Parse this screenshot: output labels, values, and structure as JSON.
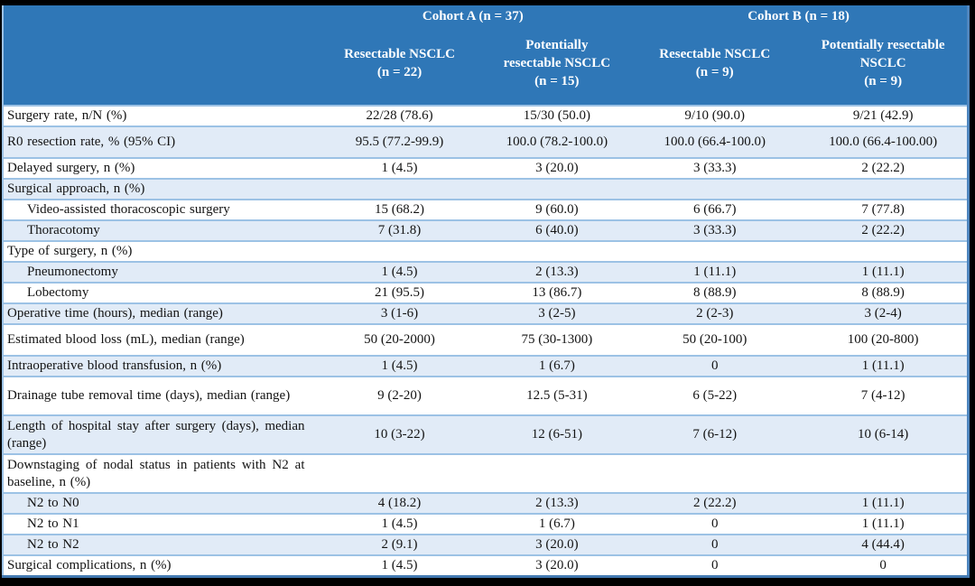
{
  "colors": {
    "header_bg": "#2F77B7",
    "header_text": "#FFFFFF",
    "row_bg": "#FFFFFF",
    "row_alt_bg": "#E1EBF7",
    "row_border": "#9CC2E5",
    "outer_border": "#4379B1",
    "matte": "#000000",
    "body_text": "#131313"
  },
  "header": {
    "cohort_a": "Cohort A (n = 37)",
    "cohort_b": "Cohort B (n = 18)",
    "columns": [
      {
        "lines": [
          "Resectable NSCLC",
          "(n = 22)"
        ]
      },
      {
        "lines": [
          "Potentially",
          "resectable NSCLC",
          "(n = 15)"
        ]
      },
      {
        "lines": [
          "Resectable NSCLC",
          "(n = 9)"
        ]
      },
      {
        "lines": [
          "Potentially resectable",
          "NSCLC",
          "(n = 9)"
        ]
      }
    ]
  },
  "rows": [
    {
      "label": "Surgery rate, n/N (%)",
      "indent": false,
      "variant": "normal",
      "values": [
        "22/28 (78.6)",
        "15/30 (50.0)",
        "9/10 (90.0)",
        "9/21 (42.9)"
      ]
    },
    {
      "label": "R0 resection rate, % (95% CI)",
      "indent": false,
      "variant": "tall",
      "values": [
        "95.5 (77.2-99.9)",
        "100.0 (78.2-100.0)",
        "100.0 (66.4-100.0)",
        "100.0 (66.4-100.00)"
      ]
    },
    {
      "label": "Delayed surgery, n (%)",
      "indent": false,
      "variant": "normal",
      "values": [
        "1 (4.5)",
        "3 (20.0)",
        "3 (33.3)",
        "2 (22.2)"
      ]
    },
    {
      "label": "Surgical approach, n (%)",
      "indent": false,
      "variant": "normal",
      "values": [
        "",
        "",
        "",
        ""
      ]
    },
    {
      "label": "Video-assisted thoracoscopic surgery",
      "indent": true,
      "variant": "normal",
      "values": [
        "15 (68.2)",
        "9 (60.0)",
        "6 (66.7)",
        "7 (77.8)"
      ]
    },
    {
      "label": "Thoracotomy",
      "indent": true,
      "variant": "normal",
      "values": [
        "7 (31.8)",
        "6 (40.0)",
        "3 (33.3)",
        "2 (22.2)"
      ]
    },
    {
      "label": "Type of surgery, n (%)",
      "indent": false,
      "variant": "normal",
      "values": [
        "",
        "",
        "",
        ""
      ]
    },
    {
      "label": "Pneumonectomy",
      "indent": true,
      "variant": "normal",
      "values": [
        "1 (4.5)",
        "2 (13.3)",
        "1 (11.1)",
        "1 (11.1)"
      ]
    },
    {
      "label": "Lobectomy",
      "indent": true,
      "variant": "normal",
      "values": [
        "21 (95.5)",
        "13 (86.7)",
        "8 (88.9)",
        "8 (88.9)"
      ]
    },
    {
      "label": "Operative time (hours), median (range)",
      "indent": false,
      "variant": "normal",
      "values": [
        "3 (1-6)",
        "3 (2-5)",
        "2 (2-3)",
        "3 (2-4)"
      ]
    },
    {
      "label": "Estimated blood loss (mL), median (range)",
      "indent": false,
      "variant": "tall",
      "values": [
        "50 (20-2000)",
        "75 (30-1300)",
        "50 (20-100)",
        "100 (20-800)"
      ]
    },
    {
      "label": "Intraoperative blood transfusion, n (%)",
      "indent": false,
      "variant": "normal",
      "values": [
        "1 (4.5)",
        "1 (6.7)",
        "0",
        "1 (11.1)"
      ]
    },
    {
      "label": "Drainage tube removal time (days), median (range)",
      "indent": false,
      "variant": "twoline",
      "values": [
        "9 (2-20)",
        "12.5 (5-31)",
        "6 (5-22)",
        "7 (4-12)"
      ]
    },
    {
      "label": "Length of hospital stay after surgery (days), median (range)",
      "indent": false,
      "variant": "twoline",
      "values": [
        "10 (3-22)",
        "12 (6-51)",
        "7 (6-12)",
        "10 (6-14)"
      ]
    },
    {
      "label": "Downstaging of nodal status in patients with N2 at baseline, n (%)",
      "indent": false,
      "variant": "twoline",
      "values": [
        "",
        "",
        "",
        ""
      ]
    },
    {
      "label": "N2 to N0",
      "indent": true,
      "variant": "normal",
      "values": [
        "4 (18.2)",
        "2 (13.3)",
        "2 (22.2)",
        "1 (11.1)"
      ]
    },
    {
      "label": "N2 to N1",
      "indent": true,
      "variant": "normal",
      "values": [
        "1 (4.5)",
        "1 (6.7)",
        "0",
        "1 (11.1)"
      ]
    },
    {
      "label": "N2 to N2",
      "indent": true,
      "variant": "normal",
      "values": [
        "2 (9.1)",
        "3 (20.0)",
        "0",
        "4 (44.4)"
      ]
    },
    {
      "label": "Surgical complications, n (%)",
      "indent": false,
      "variant": "normal",
      "values": [
        "1 (4.5)",
        "3 (20.0)",
        "0",
        "0"
      ]
    }
  ]
}
